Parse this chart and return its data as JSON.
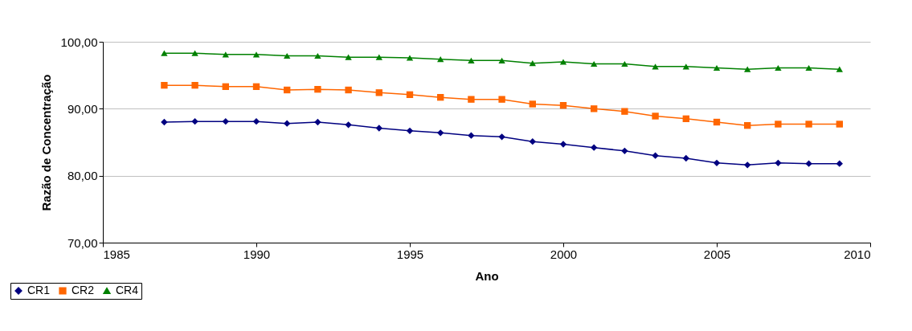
{
  "chart_data": {
    "type": "line",
    "xlabel": "Ano",
    "ylabel": "Razão de Concentração",
    "x": [
      1987,
      1988,
      1989,
      1990,
      1991,
      1992,
      1993,
      1994,
      1995,
      1996,
      1997,
      1998,
      1999,
      2000,
      2001,
      2002,
      2003,
      2004,
      2005,
      2006,
      2007,
      2008,
      2009
    ],
    "series": [
      {
        "name": "CR1",
        "color": "#000080",
        "marker": "diamond",
        "values": [
          88.0,
          88.1,
          88.1,
          88.1,
          87.8,
          88.0,
          87.6,
          87.1,
          86.7,
          86.4,
          86.0,
          85.8,
          85.1,
          84.7,
          84.2,
          83.7,
          83.0,
          82.6,
          81.9,
          81.6,
          81.9,
          81.8,
          81.8
        ]
      },
      {
        "name": "CR2",
        "color": "#ff6600",
        "marker": "square",
        "values": [
          93.5,
          93.5,
          93.3,
          93.3,
          92.8,
          92.9,
          92.8,
          92.4,
          92.1,
          91.7,
          91.4,
          91.4,
          90.7,
          90.5,
          90.0,
          89.6,
          88.9,
          88.5,
          88.0,
          87.5,
          87.7,
          87.7,
          87.7
        ]
      },
      {
        "name": "CR4",
        "color": "#008000",
        "marker": "triangle",
        "values": [
          98.3,
          98.3,
          98.1,
          98.1,
          97.9,
          97.9,
          97.7,
          97.7,
          97.6,
          97.4,
          97.2,
          97.2,
          96.8,
          97.0,
          96.7,
          96.7,
          96.3,
          96.3,
          96.1,
          95.9,
          96.1,
          96.1,
          95.9
        ]
      }
    ],
    "xlim": [
      1985,
      2010
    ],
    "xticks": [
      1985,
      1990,
      1995,
      2000,
      2005,
      2010
    ],
    "ylim": [
      70,
      100
    ],
    "yticks": [
      {
        "value": 70,
        "label": "70,00"
      },
      {
        "value": 80,
        "label": "80,00"
      },
      {
        "value": 90,
        "label": "90,00"
      },
      {
        "value": 100,
        "label": "100,00"
      }
    ],
    "grid": "y",
    "legend": "bottom left",
    "line_style": "solid"
  }
}
